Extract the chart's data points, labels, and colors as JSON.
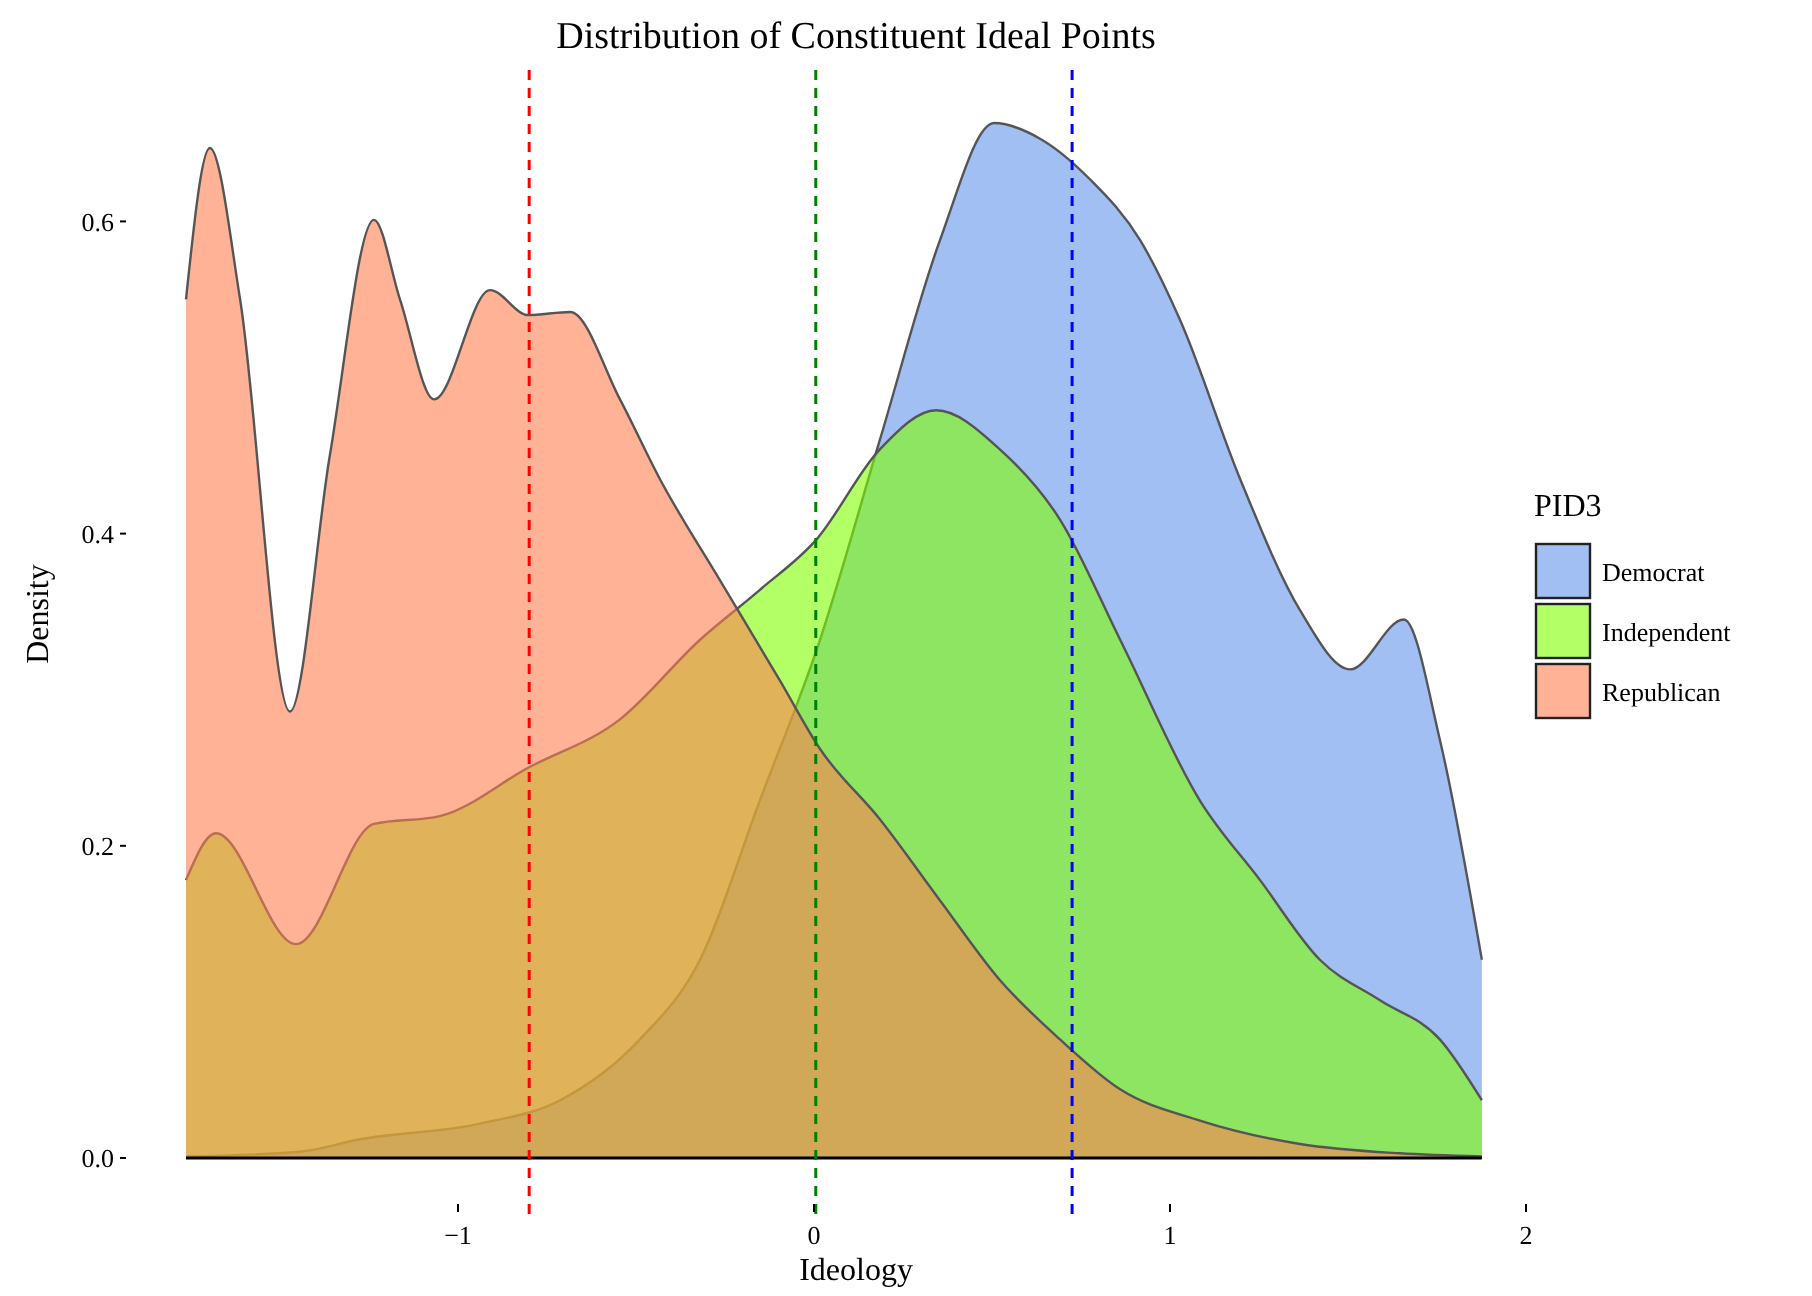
{
  "chart_data": {
    "type": "area",
    "title": "Distribution of Constituent Ideal Points",
    "xlabel": "Ideology",
    "ylabel": "Density",
    "legend_title": "PID3",
    "legend": "right",
    "grid": false,
    "line_style": "solid",
    "xlim": [
      -1.764,
      2
    ],
    "ylim": [
      0,
      0.697
    ],
    "xticks": [
      {
        "value": -1,
        "label": "−1"
      },
      0,
      1,
      2
    ],
    "yticks": [
      {
        "value": 0,
        "label": "0.0"
      },
      0.2,
      0.4,
      0.6
    ],
    "series": [
      {
        "name": "Democrat",
        "color": "#6495ed",
        "x": [
          -1.764,
          -1.444,
          -1.275,
          -0.938,
          -0.713,
          -0.489,
          -0.32,
          -0.152,
          0.017,
          0.185,
          0.354,
          0.506,
          0.635,
          0.775,
          0.916,
          1.028,
          1.197,
          1.365,
          1.506,
          1.657,
          1.758,
          1.876
        ],
        "values": [
          0.001,
          0.004,
          0.012,
          0.022,
          0.037,
          0.076,
          0.127,
          0.229,
          0.332,
          0.46,
          0.588,
          0.663,
          0.653,
          0.627,
          0.588,
          0.537,
          0.435,
          0.351,
          0.313,
          0.345,
          0.268,
          0.127
        ]
      },
      {
        "name": "Independent",
        "color": "#7fff00",
        "x": [
          -1.764,
          -1.68,
          -1.455,
          -1.236,
          -1.051,
          -0.803,
          -0.545,
          -0.32,
          -0.152,
          0.006,
          0.185,
          0.343,
          0.522,
          0.691,
          0.86,
          1.084,
          1.253,
          1.421,
          1.59,
          1.758,
          1.876
        ],
        "values": [
          0.178,
          0.208,
          0.137,
          0.214,
          0.219,
          0.25,
          0.281,
          0.332,
          0.364,
          0.396,
          0.454,
          0.479,
          0.454,
          0.409,
          0.332,
          0.229,
          0.178,
          0.127,
          0.101,
          0.076,
          0.037
        ]
      },
      {
        "name": "Republican",
        "color": "#ff7f50",
        "x": [
          -1.764,
          -1.697,
          -1.612,
          -1.472,
          -1.36,
          -1.236,
          -1.163,
          -1.067,
          -0.91,
          -0.803,
          -0.685,
          -0.545,
          -0.433,
          -0.264,
          -0.096,
          0.017,
          0.185,
          0.354,
          0.522,
          0.691,
          0.86,
          1.084,
          1.365,
          1.646,
          1.876
        ],
        "values": [
          0.55,
          0.647,
          0.55,
          0.286,
          0.45,
          0.601,
          0.55,
          0.486,
          0.556,
          0.54,
          0.542,
          0.486,
          0.435,
          0.37,
          0.306,
          0.262,
          0.217,
          0.165,
          0.114,
          0.076,
          0.044,
          0.024,
          0.009,
          0.003,
          0.001
        ]
      }
    ],
    "ref_lines": [
      {
        "axis": "x",
        "value": -0.8,
        "color": "#ff0000",
        "line_style": "dashed"
      },
      {
        "axis": "x",
        "value": 0.005,
        "color": "#008000",
        "line_style": "dashed"
      },
      {
        "axis": "x",
        "value": 0.725,
        "color": "#0000ff",
        "line_style": "dashed"
      }
    ]
  }
}
